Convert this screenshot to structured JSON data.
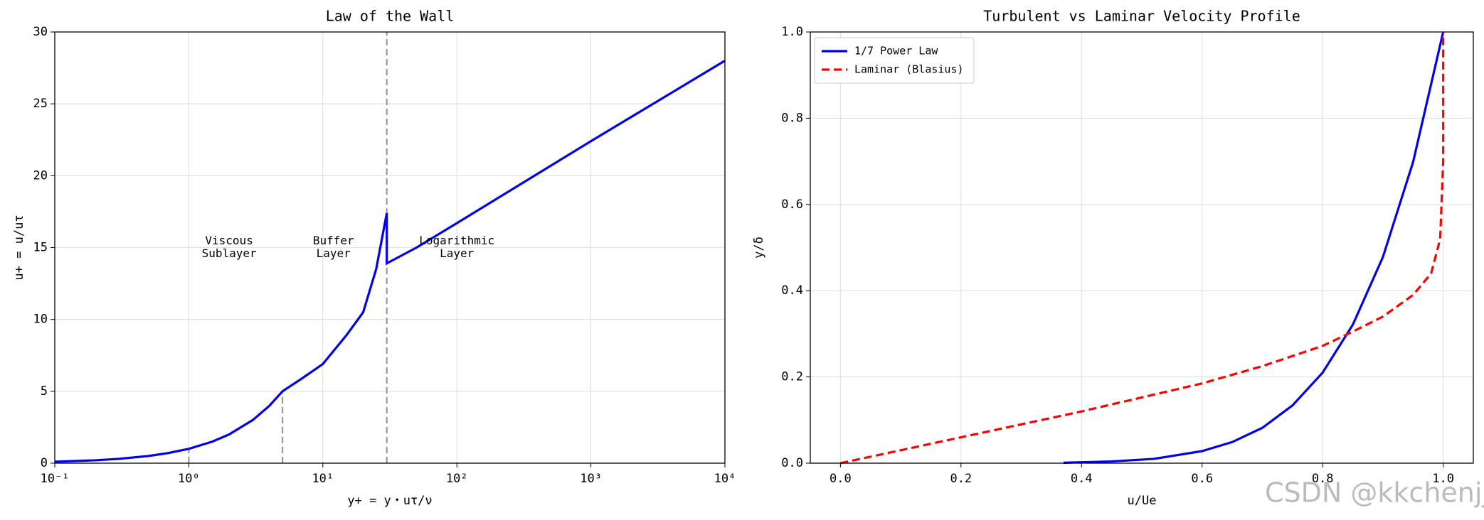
{
  "chart_data": [
    {
      "type": "line",
      "title": "Law of the Wall",
      "xlabel": "y+ = y・uτ/ν",
      "ylabel": "u+ = u/uτ",
      "xscale": "log",
      "xlim": [
        0.1,
        10000
      ],
      "xticks": [
        {
          "value": 0.1,
          "label": "10⁻¹"
        },
        {
          "value": 1,
          "label": "10⁰"
        },
        {
          "value": 10,
          "label": "10¹"
        },
        {
          "value": 100,
          "label": "10²"
        },
        {
          "value": 1000,
          "label": "10³"
        },
        {
          "value": 10000,
          "label": "10⁴"
        }
      ],
      "ylim": [
        0,
        30
      ],
      "yticks": [
        0,
        5,
        10,
        15,
        20,
        25,
        30
      ],
      "grid": true,
      "series": [
        {
          "color": "#0000ee",
          "x": [
            0.1,
            0.2,
            0.3,
            0.5,
            0.7,
            1,
            1.5,
            2,
            3,
            4,
            5,
            7,
            10,
            15,
            20,
            25,
            30,
            30,
            50,
            100,
            1000,
            10000
          ],
          "values": [
            0.1,
            0.2,
            0.3,
            0.5,
            0.7,
            1,
            1.5,
            2,
            3,
            4,
            5,
            5.9,
            6.9,
            8.9,
            10.5,
            13.5,
            17.4,
            13.9,
            15.0,
            16.7,
            22.4,
            28.0
          ]
        }
      ],
      "reference_lines": {
        "color": "#999999",
        "lines": [
          {
            "x": 1,
            "ymax": 1
          },
          {
            "x": 5,
            "ymax": 5
          },
          {
            "x": 30,
            "ymax": 30
          }
        ]
      },
      "annotations": [
        {
          "lines": [
            "Viscous",
            "Sublayer"
          ],
          "x": 2,
          "y": 15
        },
        {
          "lines": [
            "Buffer",
            "Layer"
          ],
          "x": 12,
          "y": 15
        },
        {
          "lines": [
            "Logarithmic",
            "Layer"
          ],
          "x": 100,
          "y": 15
        }
      ]
    },
    {
      "type": "line",
      "title": "Turbulent vs Laminar Velocity Profile",
      "xlabel": "u/Ue",
      "ylabel": "y/δ",
      "xlim": [
        -0.05,
        1.05
      ],
      "xticks": [
        {
          "value": 0,
          "label": "0.0"
        },
        0.2,
        0.4,
        0.6,
        0.8,
        {
          "value": 1,
          "label": "1.0"
        }
      ],
      "ylim": [
        0,
        1
      ],
      "yticks": [
        {
          "value": 0,
          "label": "0.0"
        },
        0.2,
        0.4,
        0.6,
        0.8,
        {
          "value": 1,
          "label": "1.0"
        }
      ],
      "grid": true,
      "legend": "upper left",
      "series": [
        {
          "name": "1/7 Power Law",
          "color": "#0000ee",
          "linestyle": "solid",
          "x": [
            0.37,
            0.45,
            0.52,
            0.6,
            0.65,
            0.7,
            0.75,
            0.8,
            0.85,
            0.9,
            0.95,
            1.0
          ],
          "values": [
            0.001,
            0.004,
            0.01,
            0.028,
            0.049,
            0.082,
            0.134,
            0.21,
            0.321,
            0.478,
            0.698,
            1.0
          ]
        },
        {
          "name": "Laminar (Blasius)",
          "color": "#ff0000",
          "linestyle": "dashed",
          "x": [
            0,
            0.2,
            0.4,
            0.6,
            0.7,
            0.8,
            0.85,
            0.9,
            0.95,
            0.98,
            0.995,
            1.0,
            1.0
          ],
          "values": [
            0,
            0.06,
            0.12,
            0.185,
            0.225,
            0.272,
            0.305,
            0.34,
            0.39,
            0.44,
            0.52,
            0.7,
            1.0
          ]
        }
      ]
    }
  ],
  "watermark": "CSDN @kkchenjj"
}
